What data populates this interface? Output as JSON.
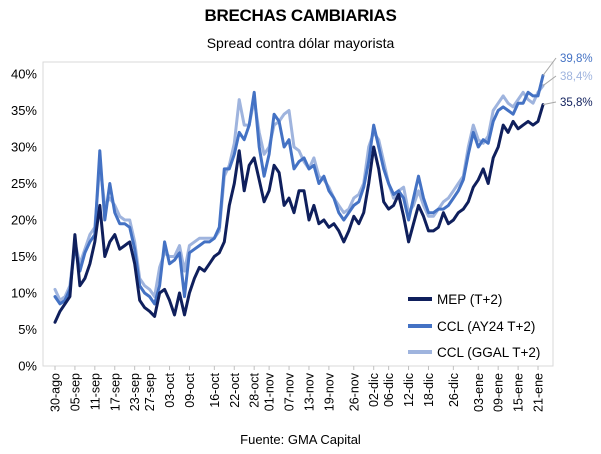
{
  "header": {
    "title": "BRECHAS CAMBIARIAS",
    "subtitle": "Spread contra dólar mayorista"
  },
  "footer": {
    "source": "Fuente: GMA Capital"
  },
  "chart_data": {
    "type": "line",
    "title": "BRECHAS CAMBIARIAS",
    "subtitle": "Spread contra dólar mayorista",
    "ylabel": "",
    "xlabel": "",
    "ylim": [
      0,
      40
    ],
    "yticks": [
      0,
      5,
      10,
      15,
      20,
      25,
      30,
      35,
      40
    ],
    "ytick_labels": [
      "0%",
      "5%",
      "10%",
      "15%",
      "20%",
      "25%",
      "30%",
      "35%",
      "40%"
    ],
    "x_tick_labels": [
      "30-ago",
      "05-sep",
      "11-sep",
      "17-sep",
      "23-sep",
      "27-sep",
      "03-oct",
      "09-oct",
      "16-oct",
      "22-oct",
      "28-oct",
      "01-nov",
      "07-nov",
      "13-nov",
      "19-nov",
      "26-nov",
      "02-dic",
      "06-dic",
      "12-dic",
      "18-dic",
      "26-dic",
      "03-ene",
      "09-ene",
      "15-ene",
      "21-ene"
    ],
    "x_tick_index": [
      0,
      4,
      8,
      12,
      16,
      19,
      23,
      27,
      32,
      36,
      40,
      43,
      47,
      51,
      55,
      60,
      64,
      67,
      71,
      75,
      80,
      85,
      89,
      93,
      97
    ],
    "legend_position": "bottom-right",
    "colors": {
      "MEP (T+2)": "#0f1f5c",
      "CCL (AY24 T+2)": "#4472c4",
      "CCL (GGAL T+2)": "#9fb4de"
    },
    "end_labels": [
      {
        "series": "CCL (AY24 T+2)",
        "text": "39,8%",
        "color": "#4472c4"
      },
      {
        "series": "CCL (GGAL T+2)",
        "text": "38,4%",
        "color": "#9fb4de"
      },
      {
        "series": "MEP (T+2)",
        "text": "35,8%",
        "color": "#0f1f5c"
      }
    ],
    "series": [
      {
        "name": "MEP (T+2)",
        "values": [
          6.0,
          7.5,
          8.5,
          9.5,
          18.0,
          11.0,
          12.0,
          14.0,
          17.0,
          22.0,
          15.0,
          17.0,
          18.0,
          16.0,
          16.5,
          17.0,
          14.0,
          9.0,
          8.0,
          7.5,
          6.8,
          10.0,
          10.5,
          9.0,
          7.0,
          10.0,
          7.0,
          10.0,
          12.0,
          13.5,
          13.0,
          14.0,
          15.0,
          15.5,
          17.0,
          22.0,
          25.0,
          29.5,
          24.0,
          27.5,
          28.5,
          25.5,
          22.5,
          24.0,
          27.5,
          26.5,
          22.0,
          23.0,
          21.0,
          24.0,
          24.0,
          20.0,
          22.0,
          19.5,
          20.0,
          19.0,
          19.5,
          18.5,
          17.0,
          18.5,
          20.5,
          19.5,
          21.0,
          25.0,
          30.0,
          27.0,
          22.5,
          21.5,
          22.0,
          23.5,
          20.5,
          17.0,
          19.5,
          22.0,
          20.5,
          18.5,
          18.5,
          19.0,
          21.0,
          19.5,
          20.0,
          21.0,
          21.5,
          22.5,
          24.5,
          25.5,
          27.0,
          25.0,
          28.5,
          30.0,
          33.0,
          32.0,
          33.5,
          32.5,
          33.0,
          33.5,
          33.0,
          33.5,
          35.8
        ]
      },
      {
        "name": "CCL (AY24 T+2)",
        "values": [
          9.5,
          8.5,
          9.0,
          10.5,
          16.5,
          13.0,
          15.5,
          17.0,
          18.0,
          29.5,
          20.0,
          25.0,
          21.0,
          19.5,
          19.5,
          19.0,
          16.0,
          11.0,
          10.0,
          9.5,
          8.5,
          11.0,
          17.0,
          14.0,
          14.5,
          15.5,
          9.5,
          15.5,
          16.0,
          16.5,
          17.0,
          17.0,
          17.5,
          19.0,
          27.0,
          27.0,
          29.0,
          32.0,
          31.0,
          33.0,
          37.5,
          30.0,
          26.0,
          29.0,
          34.5,
          33.5,
          30.0,
          31.0,
          27.0,
          28.0,
          28.5,
          27.0,
          27.5,
          25.0,
          26.0,
          24.0,
          23.0,
          21.0,
          20.0,
          21.0,
          22.0,
          22.5,
          24.5,
          28.0,
          33.0,
          30.0,
          27.0,
          25.0,
          23.5,
          24.0,
          23.0,
          20.0,
          23.0,
          26.0,
          23.0,
          21.0,
          21.0,
          21.5,
          21.5,
          22.0,
          23.0,
          24.0,
          25.5,
          29.0,
          32.0,
          30.0,
          31.0,
          30.5,
          33.5,
          35.0,
          35.5,
          35.0,
          34.5,
          36.0,
          36.0,
          37.5,
          37.0,
          37.0,
          39.8
        ]
      },
      {
        "name": "CCL (GGAL T+2)",
        "values": [
          10.5,
          9.0,
          9.5,
          11.0,
          17.0,
          14.0,
          16.0,
          18.0,
          19.0,
          27.5,
          22.0,
          23.0,
          22.0,
          20.5,
          20.0,
          20.0,
          17.0,
          12.0,
          11.0,
          10.5,
          9.5,
          13.5,
          15.5,
          15.0,
          15.0,
          16.5,
          13.0,
          16.5,
          17.0,
          17.5,
          17.5,
          17.5,
          17.5,
          18.5,
          26.0,
          27.5,
          30.5,
          36.5,
          33.0,
          33.0,
          36.5,
          32.0,
          29.0,
          30.0,
          33.0,
          33.5,
          34.5,
          35.0,
          30.0,
          29.5,
          28.0,
          27.0,
          28.5,
          26.0,
          25.5,
          24.5,
          23.0,
          22.0,
          21.0,
          21.5,
          23.0,
          23.5,
          25.0,
          30.0,
          32.0,
          31.0,
          28.0,
          25.0,
          23.0,
          24.0,
          24.5,
          21.0,
          22.0,
          24.0,
          22.0,
          20.5,
          20.5,
          21.5,
          22.5,
          23.0,
          24.0,
          25.0,
          26.0,
          30.0,
          33.0,
          31.0,
          30.5,
          31.5,
          35.0,
          36.0,
          37.0,
          36.0,
          35.5,
          36.5,
          37.5,
          36.5,
          36.0,
          37.5,
          38.4
        ]
      }
    ]
  }
}
